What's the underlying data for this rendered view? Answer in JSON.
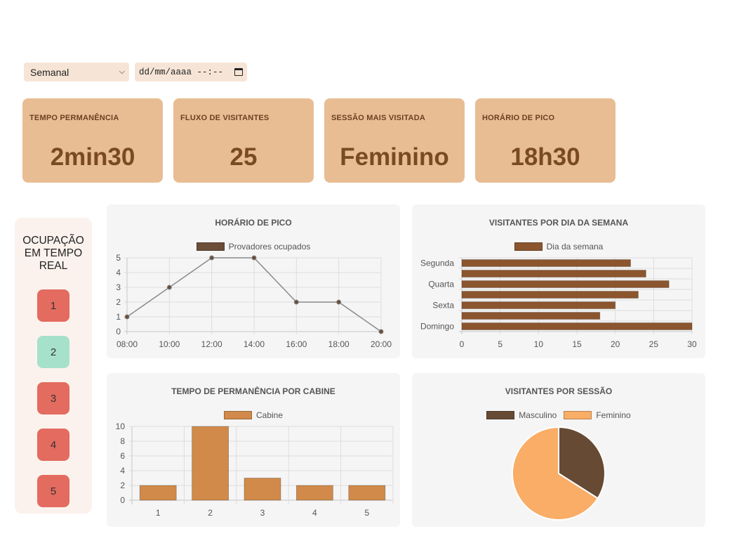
{
  "filters": {
    "period": {
      "value": "Semanal"
    },
    "date": {
      "placeholder": "dd/mm/aaaa --:--"
    }
  },
  "cards": [
    {
      "title": "TEMPO PERMANÊNCIA",
      "value": "2min30"
    },
    {
      "title": "FLUXO DE VISITANTES",
      "value": "25"
    },
    {
      "title": "SESSÃO MAIS VISITADA",
      "value": "Feminino"
    },
    {
      "title": "HORÁRIO DE PICO",
      "value": "18h30"
    }
  ],
  "occupancy": {
    "title": "OCUPAÇÃO EM TEMPO REAL",
    "cabins": [
      {
        "label": "1",
        "status": "occupied",
        "color": "#e36b5f"
      },
      {
        "label": "2",
        "status": "free",
        "color": "#a6e1cb"
      },
      {
        "label": "3",
        "status": "occupied",
        "color": "#e36b5f"
      },
      {
        "label": "4",
        "status": "occupied",
        "color": "#e36b5f"
      },
      {
        "label": "5",
        "status": "occupied",
        "color": "#e36b5f"
      }
    ]
  },
  "chart_data": [
    {
      "type": "line",
      "title": "HORÁRIO DE PICO",
      "categories": [
        "08:00",
        "10:00",
        "12:00",
        "14:00",
        "16:00",
        "18:00",
        "20:00"
      ],
      "series": [
        {
          "name": "Provadores ocupados",
          "values": [
            1,
            3,
            5,
            5,
            2,
            2,
            0
          ],
          "color": "#6b4e3a"
        }
      ],
      "ylim": [
        0,
        5
      ],
      "yticks": [
        0,
        1,
        2,
        3,
        4,
        5
      ],
      "grid": true,
      "legend": "top"
    },
    {
      "type": "bar",
      "orientation": "horizontal",
      "title": "VISITANTES POR DIA DA SEMANA",
      "categories": [
        "Segunda",
        "",
        "Quarta",
        "",
        "Sexta",
        "",
        "Domingo"
      ],
      "series": [
        {
          "name": "Dia da semana",
          "values": [
            22,
            24,
            27,
            23,
            20,
            18,
            30
          ],
          "color": "#8b552e"
        }
      ],
      "xlim": [
        0,
        30
      ],
      "xticks": [
        0,
        5,
        10,
        15,
        20,
        25,
        30
      ],
      "grid": true,
      "legend": "top"
    },
    {
      "type": "bar",
      "title": "TEMPO DE PERMANÊNCIA POR CABINE",
      "categories": [
        "1",
        "2",
        "3",
        "4",
        "5"
      ],
      "series": [
        {
          "name": "Cabine",
          "values": [
            2,
            10,
            3,
            2,
            2
          ],
          "color": "#d18a4a"
        }
      ],
      "ylim": [
        0,
        10
      ],
      "yticks": [
        0,
        2,
        4,
        6,
        8,
        10
      ],
      "grid": true,
      "legend": "top"
    },
    {
      "type": "pie",
      "title": "VISITANTES POR SESSÃO",
      "categories": [
        "Masculino",
        "Feminino"
      ],
      "values": [
        34,
        66
      ],
      "colors": [
        "#664a34",
        "#f9ad66"
      ],
      "legend": "top"
    }
  ]
}
